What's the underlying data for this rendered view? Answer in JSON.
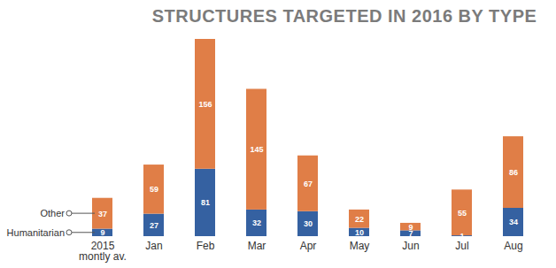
{
  "chart_data": {
    "type": "bar",
    "title": "STRUCTURES TARGETED IN 2016 BY TYPE",
    "categories": [
      "2015 montly av.",
      "Jan",
      "Feb",
      "Mar",
      "Apr",
      "May",
      "Jun",
      "Jul",
      "Aug"
    ],
    "series": [
      {
        "name": "Humanitarian",
        "color": "#3561a1",
        "values": [
          9,
          27,
          81,
          32,
          30,
          10,
          7,
          1,
          34
        ]
      },
      {
        "name": "Other",
        "color": "#e07e47",
        "values": [
          37,
          59,
          156,
          145,
          67,
          22,
          9,
          55,
          86
        ]
      }
    ],
    "stacked": true,
    "data_labels": true,
    "tick_labels": "x",
    "legend": "left"
  }
}
